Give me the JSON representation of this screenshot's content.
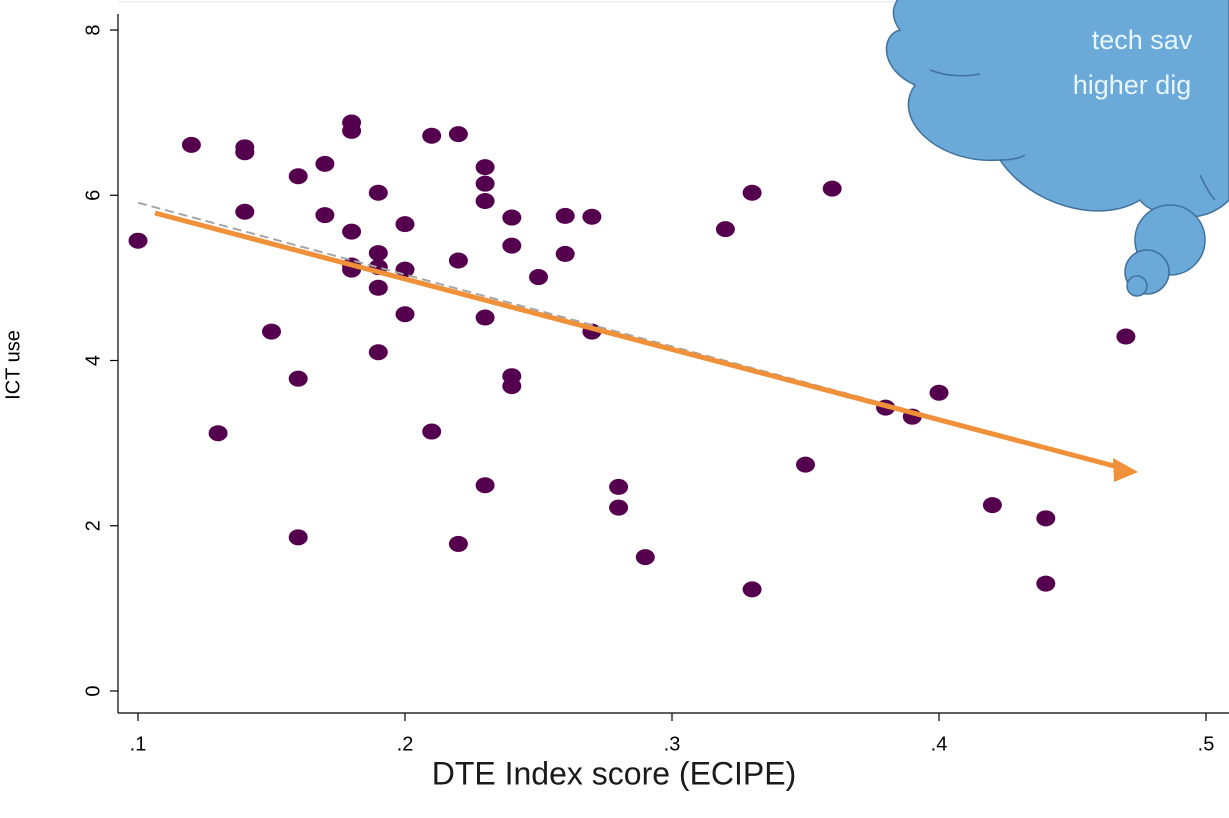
{
  "chart_data": {
    "type": "scatter",
    "xlabel": "DTE Index score (ECIPE)",
    "ylabel": "ICT use",
    "annotation_lines": [
      "tech sav",
      "higher dig"
    ],
    "xlim": [
      0.1,
      0.5
    ],
    "ylim": [
      0,
      8
    ],
    "xticks": [
      {
        "value": 0.1,
        "label": ".1"
      },
      {
        "value": 0.2,
        "label": ".2"
      },
      {
        "value": 0.3,
        "label": ".3"
      },
      {
        "value": 0.4,
        "label": ".4"
      },
      {
        "value": 0.5,
        "label": ".5"
      }
    ],
    "yticks": [
      0,
      2,
      4,
      6,
      8
    ],
    "color": "#55004e",
    "x": [
      0.1,
      0.12,
      0.13,
      0.14,
      0.14,
      0.14,
      0.15,
      0.16,
      0.16,
      0.16,
      0.17,
      0.17,
      0.18,
      0.18,
      0.18,
      0.18,
      0.18,
      0.19,
      0.19,
      0.19,
      0.19,
      0.19,
      0.2,
      0.2,
      0.2,
      0.21,
      0.21,
      0.22,
      0.22,
      0.22,
      0.23,
      0.23,
      0.23,
      0.23,
      0.23,
      0.24,
      0.24,
      0.24,
      0.24,
      0.25,
      0.26,
      0.26,
      0.27,
      0.27,
      0.28,
      0.28,
      0.29,
      0.32,
      0.33,
      0.33,
      0.35,
      0.36,
      0.38,
      0.39,
      0.4,
      0.42,
      0.44,
      0.44,
      0.47
    ],
    "y": [
      5.45,
      6.61,
      3.12,
      6.58,
      6.52,
      5.8,
      4.35,
      6.23,
      3.78,
      1.86,
      6.38,
      5.76,
      6.88,
      6.78,
      5.56,
      5.15,
      5.1,
      6.03,
      5.3,
      5.13,
      4.88,
      4.1,
      5.65,
      5.1,
      4.56,
      6.72,
      3.14,
      6.74,
      5.21,
      1.78,
      6.34,
      6.14,
      5.93,
      4.52,
      2.49,
      5.73,
      5.39,
      3.81,
      3.69,
      5.01,
      5.75,
      5.29,
      5.74,
      4.35,
      2.47,
      2.22,
      1.62,
      5.59,
      6.03,
      1.23,
      2.74,
      6.08,
      3.43,
      3.32,
      3.61,
      2.25,
      2.09,
      1.3,
      4.29
    ],
    "trend_line": {
      "x": [
        0.1,
        0.47
      ],
      "y": [
        5.91,
        2.69
      ],
      "color": "#a6a6a6"
    }
  }
}
